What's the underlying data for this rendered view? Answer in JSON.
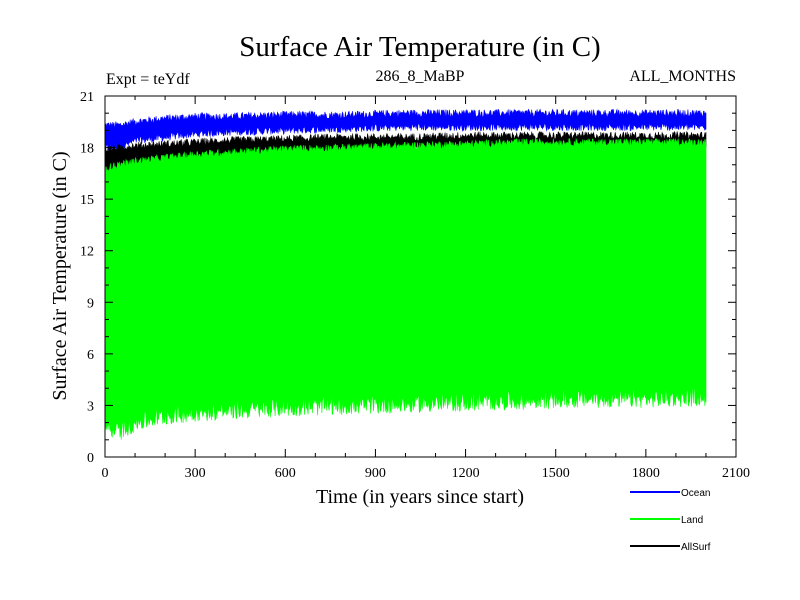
{
  "chart_data": {
    "type": "area",
    "title": "Surface Air Temperature (in C)",
    "subtitle_left": "Expt = teYdf",
    "subtitle_center": "286_8_MaBP",
    "subtitle_right": "ALL_MONTHS",
    "xlabel": "Time (in years since start)",
    "ylabel": "Surface Air Temperature (in C)",
    "xlim": [
      0,
      2100
    ],
    "ylim": [
      0,
      21
    ],
    "xticks": [
      0,
      300,
      600,
      900,
      1200,
      1500,
      1800,
      2100
    ],
    "yticks": [
      0,
      3,
      6,
      9,
      12,
      15,
      18,
      21
    ],
    "x_minor_step": 100,
    "y_minor_step": 1,
    "x_end": 2000,
    "series": [
      {
        "name": "Ocean",
        "color": "#0000ff",
        "x": [
          0,
          50,
          100,
          200,
          300,
          400,
          600,
          800,
          1000,
          1200,
          1400,
          1600,
          1800,
          2000
        ],
        "min": [
          18.0,
          18.0,
          18.4,
          18.6,
          18.8,
          18.9,
          19.0,
          19.1,
          19.2,
          19.2,
          19.2,
          19.2,
          19.2,
          19.2
        ],
        "max": [
          19.3,
          19.3,
          19.5,
          19.7,
          19.8,
          19.8,
          19.9,
          19.9,
          20.0,
          20.0,
          20.0,
          20.0,
          20.0,
          20.0
        ]
      },
      {
        "name": "AllSurf",
        "color": "#000000",
        "x": [
          0,
          50,
          100,
          200,
          300,
          400,
          600,
          800,
          1000,
          1200,
          1400,
          1600,
          1800,
          2000
        ],
        "min": [
          16.6,
          16.8,
          17.0,
          17.2,
          17.4,
          17.5,
          17.7,
          17.8,
          17.9,
          17.9,
          18.0,
          18.0,
          18.0,
          18.0
        ],
        "max": [
          17.9,
          18.0,
          18.1,
          18.2,
          18.3,
          18.4,
          18.5,
          18.6,
          18.6,
          18.7,
          18.7,
          18.7,
          18.7,
          18.7
        ]
      },
      {
        "name": "Land",
        "color": "#00ff00",
        "x": [
          0,
          50,
          100,
          200,
          300,
          400,
          600,
          800,
          1000,
          1200,
          1400,
          1600,
          1800,
          2000
        ],
        "min": [
          1.8,
          1.5,
          2.0,
          2.4,
          2.6,
          2.7,
          2.9,
          3.0,
          3.1,
          3.2,
          3.3,
          3.4,
          3.4,
          3.5
        ],
        "max": [
          16.8,
          17.0,
          17.2,
          17.4,
          17.6,
          17.7,
          17.9,
          18.0,
          18.1,
          18.2,
          18.3,
          18.3,
          18.3,
          18.3
        ]
      }
    ],
    "legend_position": "bottom-right"
  }
}
